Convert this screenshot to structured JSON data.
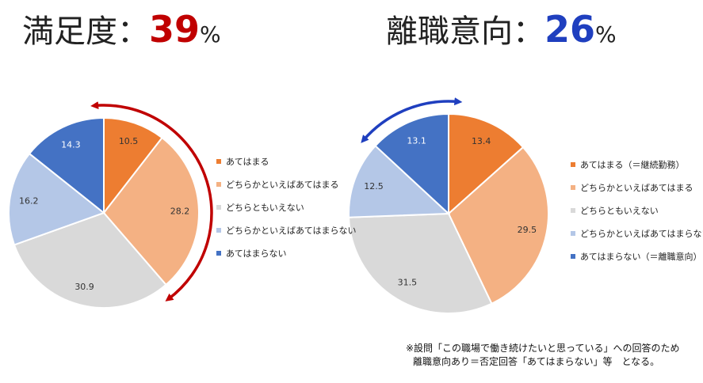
{
  "headlines": {
    "left": {
      "label": "満足度：",
      "value": "39",
      "unit": "%"
    },
    "right": {
      "label": "離職意向：",
      "value": "26",
      "unit": "%"
    }
  },
  "colors": {
    "series": [
      "#ed7d31",
      "#f4b183",
      "#d9d9d9",
      "#b4c7e7",
      "#4472c4"
    ],
    "arrow_left": "#c00000",
    "arrow_right": "#1f3fbf"
  },
  "chart_data": [
    {
      "type": "pie",
      "categories": [
        "あてはまる",
        "どちらかといえばあてはまる",
        "どちらともいえない",
        "どちらかといえばあてはまらない",
        "あてはまらない"
      ],
      "values": [
        10.5,
        28.2,
        30.9,
        16.2,
        14.3
      ],
      "legend_position": "right"
    },
    {
      "type": "pie",
      "categories": [
        "あてはまる（＝継続勤務）",
        "どちらかといえばあてはまる",
        "どちらともいえない",
        "どちらかといえばあてはまらない",
        "あてはまらない（＝離職意向）"
      ],
      "values": [
        13.4,
        29.5,
        31.5,
        12.5,
        13.1
      ],
      "legend_position": "right"
    }
  ],
  "note": {
    "line1": "※設問「この職場で働き続けたいと思っている」への回答のため",
    "line2": "離職意向あり＝否定回答「あてはまらない」等　となる。"
  }
}
